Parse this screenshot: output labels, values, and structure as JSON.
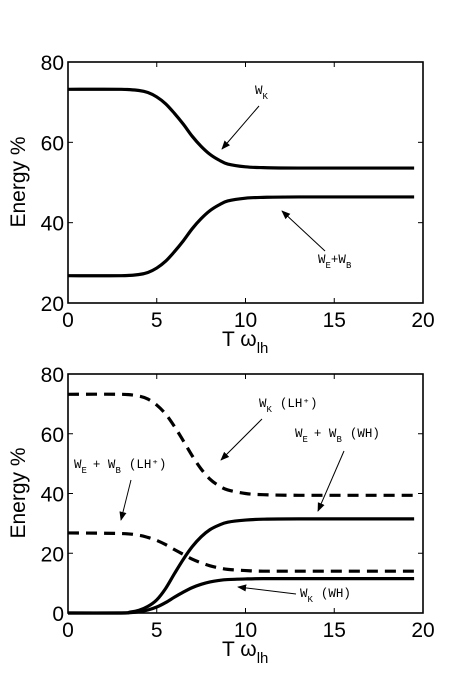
{
  "chart_data": [
    {
      "type": "line",
      "xlabel": "T ω",
      "xlabel_sub": "lh",
      "ylabel": "Energy %",
      "xlim": [
        0,
        20
      ],
      "ylim": [
        20,
        80
      ],
      "xticks": [
        "0",
        "5",
        "10",
        "15",
        "20"
      ],
      "yticks": [
        "20",
        "40",
        "60",
        "80"
      ],
      "grid": false,
      "series": [
        {
          "name": "W_K",
          "style": "solid",
          "x": [
            0,
            3,
            4,
            4.5,
            5,
            5.5,
            6,
            6.5,
            7,
            7.5,
            8,
            8.5,
            9,
            10,
            11,
            13,
            19.5
          ],
          "y": [
            73.2,
            73.2,
            72.9,
            72.4,
            71.3,
            69.6,
            67.2,
            64.5,
            61.5,
            59.0,
            57.0,
            55.6,
            54.6,
            53.9,
            53.7,
            53.6,
            53.6
          ]
        },
        {
          "name": "W_E+W_B",
          "style": "solid",
          "x": [
            0,
            3,
            4,
            4.5,
            5,
            5.5,
            6,
            6.5,
            7,
            7.5,
            8,
            8.5,
            9,
            10,
            11,
            13,
            19.5
          ],
          "y": [
            26.8,
            26.8,
            27.1,
            27.6,
            28.7,
            30.4,
            32.8,
            35.5,
            38.5,
            41.0,
            43.0,
            44.4,
            45.4,
            46.1,
            46.3,
            46.4,
            46.4
          ]
        }
      ],
      "annotations": [
        {
          "main": "W",
          "sub": "K",
          "suffix": ""
        },
        {
          "main": "W",
          "sub": "E",
          "mid": "+W",
          "sub2": "B",
          "suffix": ""
        }
      ]
    },
    {
      "type": "line",
      "xlabel": "T ω",
      "xlabel_sub": "lh",
      "ylabel": "Energy %",
      "xlim": [
        0,
        20
      ],
      "ylim": [
        0,
        80
      ],
      "xticks": [
        "0",
        "5",
        "10",
        "15",
        "20"
      ],
      "yticks": [
        "0",
        "20",
        "40",
        "60",
        "80"
      ],
      "grid": false,
      "series": [
        {
          "name": "W_K (LH+)",
          "style": "dashed",
          "x": [
            0,
            3,
            4,
            4.5,
            5,
            5.5,
            6,
            6.5,
            7,
            7.5,
            8,
            8.5,
            9,
            10,
            11,
            13,
            19.5
          ],
          "y": [
            73.2,
            73.2,
            72.6,
            71.6,
            69.6,
            66.6,
            62.4,
            57.6,
            52.6,
            48.2,
            44.8,
            42.6,
            41.2,
            40.0,
            39.6,
            39.4,
            39.4
          ]
        },
        {
          "name": "W_E + W_B (LH+)",
          "style": "dashed",
          "x": [
            0,
            3,
            4,
            4.5,
            5,
            5.5,
            6,
            6.5,
            7,
            7.5,
            8,
            8.5,
            9,
            10,
            11,
            13,
            19.5
          ],
          "y": [
            26.8,
            26.6,
            26.0,
            25.3,
            24.3,
            22.9,
            21.2,
            19.6,
            18.0,
            16.8,
            15.8,
            15.1,
            14.6,
            14.2,
            14.0,
            14.0,
            14.0
          ]
        },
        {
          "name": "W_E + W_B (WH)",
          "style": "solid",
          "x": [
            0,
            3,
            3.5,
            4,
            4.5,
            5,
            5.5,
            6,
            6.5,
            7,
            7.5,
            8,
            8.5,
            9,
            10,
            11,
            13,
            19.5
          ],
          "y": [
            0,
            0,
            0.3,
            0.9,
            2.2,
            4.4,
            8.2,
            13.2,
            18.0,
            22.2,
            25.5,
            27.9,
            29.4,
            30.4,
            31.1,
            31.4,
            31.5,
            31.5
          ]
        },
        {
          "name": "W_K (WH)",
          "style": "solid",
          "x": [
            0,
            3,
            3.5,
            4,
            4.5,
            5,
            5.5,
            6,
            6.5,
            7,
            7.5,
            8,
            8.5,
            9,
            10,
            11,
            13,
            19.5
          ],
          "y": [
            0,
            0,
            0.1,
            0.4,
            1.0,
            2.0,
            3.5,
            5.3,
            7.0,
            8.5,
            9.6,
            10.4,
            10.9,
            11.2,
            11.4,
            11.5,
            11.5,
            11.5
          ]
        }
      ],
      "annotations": [
        {
          "main": "W",
          "sub": "K",
          "suffix": "(LH+)"
        },
        {
          "main": "W",
          "sub": "E",
          "mid": "+ W",
          "sub2": "B",
          "suffix": "(WH)"
        },
        {
          "main": "W",
          "sub": "E",
          "mid": "+ W",
          "sub2": "B",
          "suffix": "(LH+)"
        },
        {
          "main": "W",
          "sub": "K",
          "suffix": "(WH)"
        }
      ]
    }
  ]
}
